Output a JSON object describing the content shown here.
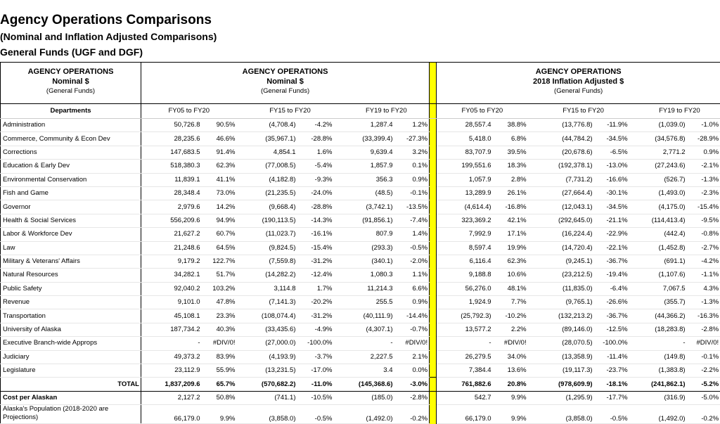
{
  "title": {
    "main": "Agency Operations Comparisons",
    "sub1": "(Nominal  and Inflation Adjusted Comparisons)",
    "sub2": "General Funds (UGF and DGF)"
  },
  "header": {
    "left": {
      "l1": "AGENCY OPERATIONS",
      "l2": "Nominal $",
      "l3": "(General Funds)"
    },
    "middle": {
      "l1": "AGENCY OPERATIONS",
      "l2": "Nominal $",
      "l3": "(General Funds)"
    },
    "right": {
      "l1": "AGENCY OPERATIONS",
      "l2": "2018 Inflation Adjusted $",
      "l3": "(General Funds)"
    }
  },
  "columns": {
    "departments": "Departments",
    "periods": [
      "FY05 to FY20",
      "FY15 to FY20",
      "FY19 to FY20",
      "FY05 to FY20",
      "FY15 to FY20",
      "FY19 to FY20"
    ]
  },
  "rows": [
    {
      "dept": "Administration",
      "v": [
        "50,726.8",
        "90.5%",
        "(4,708.4)",
        "-4.2%",
        "1,287.4",
        "1.2%",
        "28,557.4",
        "38.8%",
        "(13,776.8)",
        "-11.9%",
        "(1,039.0)",
        "-1.0%"
      ]
    },
    {
      "dept": "Commerce, Community & Econ Dev",
      "v": [
        "28,235.6",
        "46.6%",
        "(35,967.1)",
        "-28.8%",
        "(33,399.4)",
        "-27.3%",
        "5,418.0",
        "6.8%",
        "(44,784.2)",
        "-34.5%",
        "(34,576.8)",
        "-28.9%"
      ]
    },
    {
      "dept": "Corrections",
      "v": [
        "147,683.5",
        "91.4%",
        "4,854.1",
        "1.6%",
        "9,639.4",
        "3.2%",
        "83,707.9",
        "39.5%",
        "(20,678.6)",
        "-6.5%",
        "2,771.2",
        "0.9%"
      ]
    },
    {
      "dept": "Education & Early Dev",
      "v": [
        "518,380.3",
        "62.3%",
        "(77,008.5)",
        "-5.4%",
        "1,857.9",
        "0.1%",
        "199,551.6",
        "18.3%",
        "(192,378.1)",
        "-13.0%",
        "(27,243.6)",
        "-2.1%"
      ]
    },
    {
      "dept": "Environmental Conservation",
      "v": [
        "11,839.1",
        "41.1%",
        "(4,182.8)",
        "-9.3%",
        "356.3",
        "0.9%",
        "1,057.9",
        "2.8%",
        "(7,731.2)",
        "-16.6%",
        "(526.7)",
        "-1.3%"
      ]
    },
    {
      "dept": "Fish and Game",
      "v": [
        "28,348.4",
        "73.0%",
        "(21,235.5)",
        "-24.0%",
        "(48.5)",
        "-0.1%",
        "13,289.9",
        "26.1%",
        "(27,664.4)",
        "-30.1%",
        "(1,493.0)",
        "-2.3%"
      ]
    },
    {
      "dept": "Governor",
      "v": [
        "2,979.6",
        "14.2%",
        "(9,668.4)",
        "-28.8%",
        "(3,742.1)",
        "-13.5%",
        "(4,614.4)",
        "-16.8%",
        "(12,043.1)",
        "-34.5%",
        "(4,175.0)",
        "-15.4%"
      ]
    },
    {
      "dept": "Health & Social Services",
      "v": [
        "556,209.6",
        "94.9%",
        "(190,113.5)",
        "-14.3%",
        "(91,856.1)",
        "-7.4%",
        "323,369.2",
        "42.1%",
        "(292,645.0)",
        "-21.1%",
        "(114,413.4)",
        "-9.5%"
      ]
    },
    {
      "dept": "Labor & Workforce Dev",
      "v": [
        "21,627.2",
        "60.7%",
        "(11,023.7)",
        "-16.1%",
        "807.9",
        "1.4%",
        "7,992.9",
        "17.1%",
        "(16,224.4)",
        "-22.9%",
        "(442.4)",
        "-0.8%"
      ]
    },
    {
      "dept": "Law",
      "v": [
        "21,248.6",
        "64.5%",
        "(9,824.5)",
        "-15.4%",
        "(293.3)",
        "-0.5%",
        "8,597.4",
        "19.9%",
        "(14,720.4)",
        "-22.1%",
        "(1,452.8)",
        "-2.7%"
      ]
    },
    {
      "dept": "Military & Veterans' Affairs",
      "v": [
        "9,179.2",
        "122.7%",
        "(7,559.8)",
        "-31.2%",
        "(340.1)",
        "-2.0%",
        "6,116.4",
        "62.3%",
        "(9,245.1)",
        "-36.7%",
        "(691.1)",
        "-4.2%"
      ]
    },
    {
      "dept": "Natural Resources",
      "v": [
        "34,282.1",
        "51.7%",
        "(14,282.2)",
        "-12.4%",
        "1,080.3",
        "1.1%",
        "9,188.8",
        "10.6%",
        "(23,212.5)",
        "-19.4%",
        "(1,107.6)",
        "-1.1%"
      ]
    },
    {
      "dept": "Public Safety",
      "v": [
        "92,040.2",
        "103.2%",
        "3,114.8",
        "1.7%",
        "11,214.3",
        "6.6%",
        "56,276.0",
        "48.1%",
        "(11,835.0)",
        "-6.4%",
        "7,067.5",
        "4.3%"
      ]
    },
    {
      "dept": "Revenue",
      "v": [
        "9,101.0",
        "47.8%",
        "(7,141.3)",
        "-20.2%",
        "255.5",
        "0.9%",
        "1,924.9",
        "7.7%",
        "(9,765.1)",
        "-26.6%",
        "(355.7)",
        "-1.3%"
      ]
    },
    {
      "dept": "Transportation",
      "v": [
        "45,108.1",
        "23.3%",
        "(108,074.4)",
        "-31.2%",
        "(40,111.9)",
        "-14.4%",
        "(25,792.3)",
        "-10.2%",
        "(132,213.2)",
        "-36.7%",
        "(44,366.2)",
        "-16.3%"
      ]
    },
    {
      "dept": "University of Alaska",
      "v": [
        "187,734.2",
        "40.3%",
        "(33,435.6)",
        "-4.9%",
        "(4,307.1)",
        "-0.7%",
        "13,577.2",
        "2.2%",
        "(89,146.0)",
        "-12.5%",
        "(18,283.8)",
        "-2.8%"
      ]
    },
    {
      "dept": "Executive Branch-wide Approps",
      "v": [
        "-",
        "#DIV/0!",
        "(27,000.0)",
        "-100.0%",
        "-",
        "#DIV/0!",
        "-",
        "#DIV/0!",
        "(28,070.5)",
        "-100.0%",
        "-",
        "#DIV/0!"
      ]
    },
    {
      "dept": "Judiciary",
      "v": [
        "49,373.2",
        "83.9%",
        "(4,193.9)",
        "-3.7%",
        "2,227.5",
        "2.1%",
        "26,279.5",
        "34.0%",
        "(13,358.9)",
        "-11.4%",
        "(149.8)",
        "-0.1%"
      ]
    },
    {
      "dept": "Legislature",
      "v": [
        "23,112.9",
        "55.9%",
        "(13,231.5)",
        "-17.0%",
        "3.4",
        "0.0%",
        "7,384.4",
        "13.6%",
        "(19,117.3)",
        "-23.7%",
        "(1,383.8)",
        "-2.2%"
      ]
    }
  ],
  "total": {
    "dept": "TOTAL",
    "v": [
      "1,837,209.6",
      "65.7%",
      "(570,682.2)",
      "-11.0%",
      "(145,368.6)",
      "-3.0%",
      "761,882.6",
      "20.8%",
      "(978,609.9)",
      "-18.1%",
      "(241,862.1)",
      "-5.2%"
    ]
  },
  "cost_per_alaskan": {
    "dept": "Cost per Alaskan",
    "v": [
      "2,127.2",
      "50.8%",
      "(741.1)",
      "-10.5%",
      "(185.0)",
      "-2.8%",
      "542.7",
      "9.9%",
      "(1,295.9)",
      "-17.7%",
      "(316.9)",
      "-5.0%"
    ]
  },
  "population": {
    "dept": "Alaska's Population (2018-2020 are Projections)",
    "v": [
      "66,179.0",
      "9.9%",
      "(3,858.0)",
      "-0.5%",
      "(1,492.0)",
      "-0.2%",
      "66,179.0",
      "9.9%",
      "(3,858.0)",
      "-0.5%",
      "(1,492.0)",
      "-0.2%"
    ]
  },
  "colors": {
    "divider": "#ffff00",
    "border": "#000000"
  }
}
